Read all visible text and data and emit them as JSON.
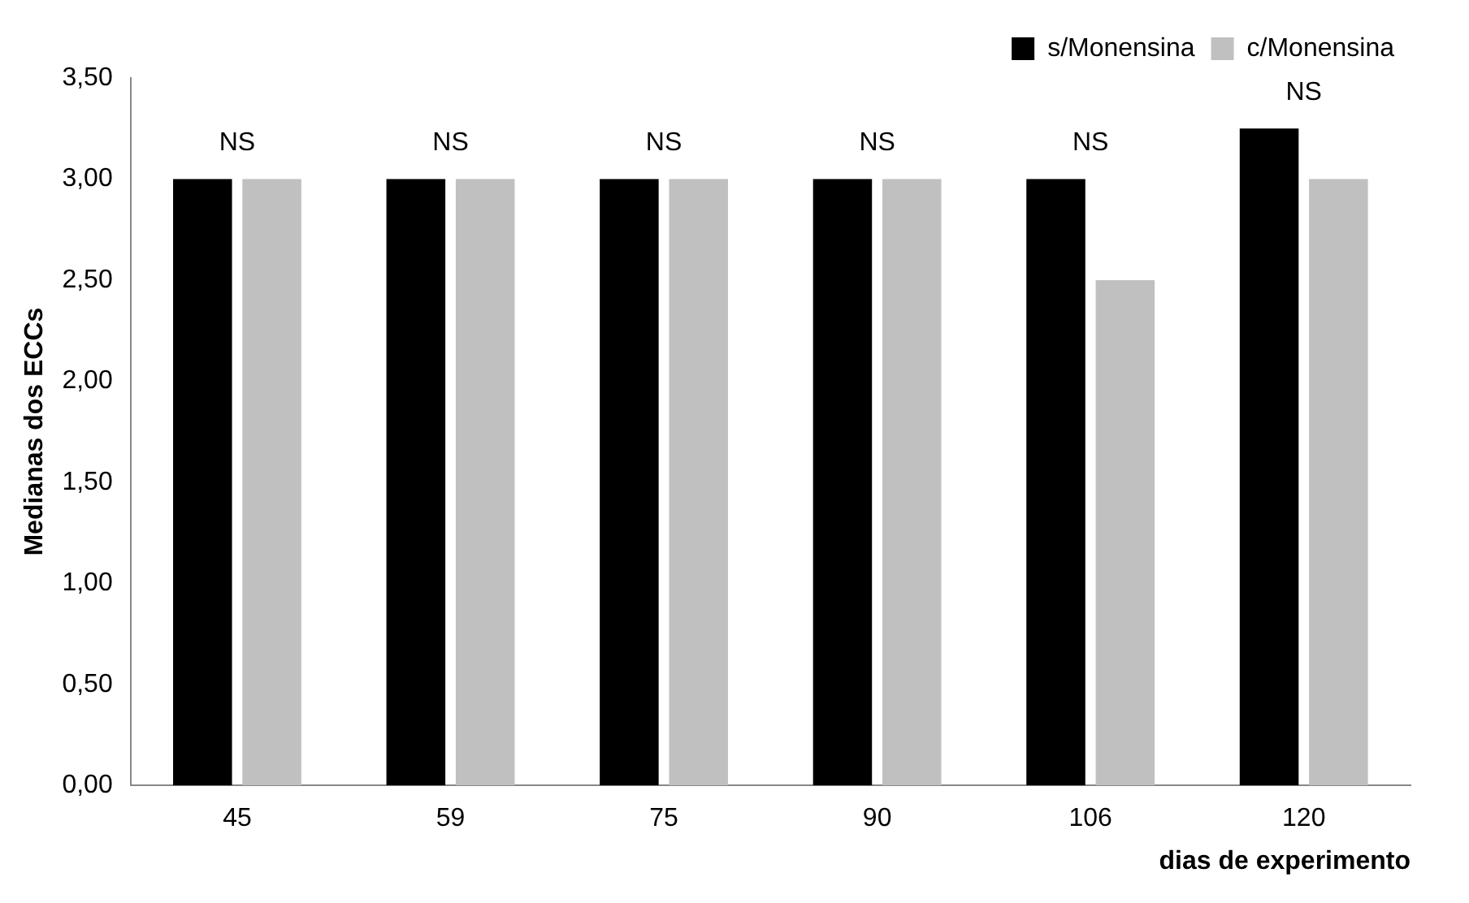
{
  "chart_data": {
    "type": "bar",
    "xlabel": "dias de experimento",
    "ylabel": "Medianas dos ECCs",
    "categories": [
      "45",
      "59",
      "75",
      "90",
      "106",
      "120"
    ],
    "series": [
      {
        "name": "s/Monensina",
        "color": "#000000",
        "values": [
          3.0,
          3.0,
          3.0,
          3.0,
          3.0,
          3.25
        ]
      },
      {
        "name": "c/Monensina",
        "color": "#c0c0c0",
        "values": [
          3.0,
          3.0,
          3.0,
          3.0,
          2.5,
          3.0
        ]
      }
    ],
    "ylim": [
      0,
      3.5
    ],
    "yticks": [
      {
        "value": 0,
        "label": "0,00"
      },
      {
        "value": 0.5,
        "label": "0,50"
      },
      {
        "value": 1,
        "label": "1,00"
      },
      {
        "value": 1.5,
        "label": "1,50"
      },
      {
        "value": 2,
        "label": "2,00"
      },
      {
        "value": 2.5,
        "label": "2,50"
      },
      {
        "value": 3,
        "label": "3,00"
      },
      {
        "value": 3.5,
        "label": "3,50"
      }
    ],
    "annotations": [
      {
        "text": "NS",
        "x": "45",
        "y": 3.0
      },
      {
        "text": "NS",
        "x": "59",
        "y": 3.0
      },
      {
        "text": "NS",
        "x": "75",
        "y": 3.0
      },
      {
        "text": "NS",
        "x": "90",
        "y": 3.0
      },
      {
        "text": "NS",
        "x": "106",
        "y": 3.0
      },
      {
        "text": "NS",
        "x": "120",
        "y": 3.25
      }
    ],
    "grid": false,
    "legend": "top right"
  }
}
